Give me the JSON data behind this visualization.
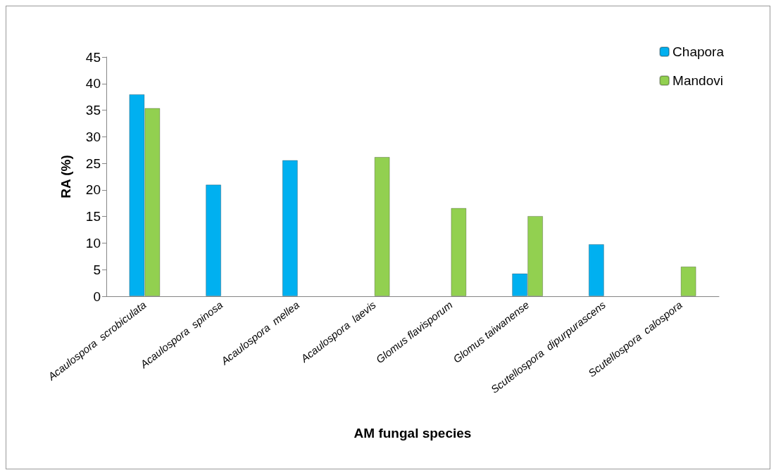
{
  "chart_data": {
    "type": "bar",
    "xlabel": "AM fungal species",
    "ylabel": "RA (%)",
    "categories": [
      "Acaulospora  scrobiculata",
      "Acaulospora  spinosa",
      "Acaulospora  mellea",
      "Acaulospora  laevis",
      "Glomus flavisporum",
      "Glomus taiwanense",
      "Scutellospora  dipurpurascens",
      "Scutellospora  calospora"
    ],
    "series": [
      {
        "name": "Chapora",
        "color": "#00b0f0",
        "values": [
          38.0,
          21.0,
          25.6,
          null,
          null,
          4.3,
          9.8,
          null
        ]
      },
      {
        "name": "Mandovi",
        "color": "#92d050",
        "values": [
          35.4,
          null,
          null,
          26.2,
          16.6,
          15.1,
          null,
          5.6
        ]
      }
    ],
    "ylim": [
      0,
      45
    ],
    "yticks": [
      0,
      5,
      10,
      15,
      20,
      25,
      30,
      35,
      40,
      45
    ],
    "grid": false,
    "legend": "top right"
  }
}
